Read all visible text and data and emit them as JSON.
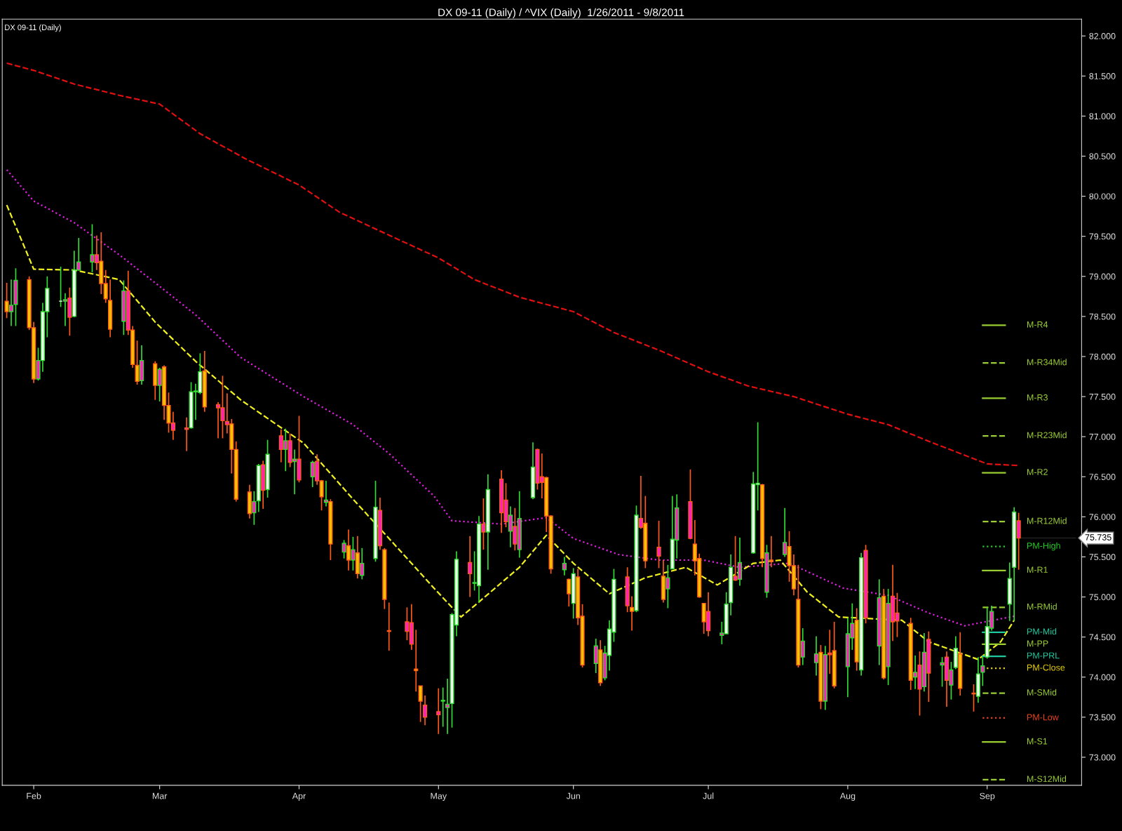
{
  "chart_data": {
    "type": "candlestick",
    "title": "DX 09-11 (Daily) / ^VIX (Daily)  1/26/2011 - 9/8/2011",
    "annotations": [
      "DX 09-11 (Daily)",
      {
        "text": "75.735",
        "x": "2011-09-08",
        "y": 75.735
      }
    ],
    "x": [
      "2011-01-26",
      "2011-01-27",
      "2011-01-28",
      "2011-01-31",
      "2011-02-01",
      "2011-02-02",
      "2011-02-03",
      "2011-02-04",
      "2011-02-07",
      "2011-02-08",
      "2011-02-09",
      "2011-02-10",
      "2011-02-11",
      "2011-02-14",
      "2011-02-15",
      "2011-02-16",
      "2011-02-17",
      "2011-02-18",
      "2011-02-21",
      "2011-02-22",
      "2011-02-23",
      "2011-02-24",
      "2011-02-25",
      "2011-02-28",
      "2011-03-01",
      "2011-03-02",
      "2011-03-03",
      "2011-03-04",
      "2011-03-07",
      "2011-03-08",
      "2011-03-09",
      "2011-03-10",
      "2011-03-11",
      "2011-03-14",
      "2011-03-15",
      "2011-03-16",
      "2011-03-17",
      "2011-03-18",
      "2011-03-21",
      "2011-03-22",
      "2011-03-23",
      "2011-03-24",
      "2011-03-25",
      "2011-03-28",
      "2011-03-29",
      "2011-03-30",
      "2011-03-31",
      "2011-04-01",
      "2011-04-04",
      "2011-04-05",
      "2011-04-06",
      "2011-04-07",
      "2011-04-08",
      "2011-04-11",
      "2011-04-12",
      "2011-04-13",
      "2011-04-14",
      "2011-04-15",
      "2011-04-18",
      "2011-04-19",
      "2011-04-20",
      "2011-04-21",
      "2011-04-25",
      "2011-04-26",
      "2011-04-27",
      "2011-04-28",
      "2011-04-29",
      "2011-05-02",
      "2011-05-03",
      "2011-05-04",
      "2011-05-05",
      "2011-05-06",
      "2011-05-09",
      "2011-05-10",
      "2011-05-11",
      "2011-05-12",
      "2011-05-13",
      "2011-05-16",
      "2011-05-17",
      "2011-05-18",
      "2011-05-19",
      "2011-05-20",
      "2011-05-23",
      "2011-05-24",
      "2011-05-25",
      "2011-05-26",
      "2011-05-27",
      "2011-05-30",
      "2011-05-31",
      "2011-06-01",
      "2011-06-02",
      "2011-06-03",
      "2011-06-06",
      "2011-06-07",
      "2011-06-08",
      "2011-06-09",
      "2011-06-10",
      "2011-06-13",
      "2011-06-14",
      "2011-06-15",
      "2011-06-16",
      "2011-06-17",
      "2011-06-20",
      "2011-06-21",
      "2011-06-22",
      "2011-06-23",
      "2011-06-24",
      "2011-06-27",
      "2011-06-28",
      "2011-06-29",
      "2011-06-30",
      "2011-07-01",
      "2011-07-04",
      "2011-07-05",
      "2011-07-06",
      "2011-07-07",
      "2011-07-08",
      "2011-07-11",
      "2011-07-12",
      "2011-07-13",
      "2011-07-14",
      "2011-07-15",
      "2011-07-18",
      "2011-07-19",
      "2011-07-20",
      "2011-07-21",
      "2011-07-22",
      "2011-07-25",
      "2011-07-26",
      "2011-07-27",
      "2011-07-28",
      "2011-07-29",
      "2011-08-01",
      "2011-08-02",
      "2011-08-03",
      "2011-08-04",
      "2011-08-05",
      "2011-08-08",
      "2011-08-09",
      "2011-08-10",
      "2011-08-11",
      "2011-08-12",
      "2011-08-15",
      "2011-08-16",
      "2011-08-17",
      "2011-08-18",
      "2011-08-19",
      "2011-08-22",
      "2011-08-23",
      "2011-08-24",
      "2011-08-25",
      "2011-08-26",
      "2011-08-29",
      "2011-08-30",
      "2011-08-31",
      "2011-09-01",
      "2011-09-02",
      "2011-09-06",
      "2011-09-07",
      "2011-09-08"
    ],
    "ohlc": [
      [
        78.69,
        78.92,
        78.48,
        78.56
      ],
      [
        78.56,
        78.96,
        78.38,
        78.64
      ],
      [
        78.65,
        79.1,
        78.38,
        78.95
      ],
      [
        78.96,
        79.0,
        78.33,
        78.36
      ],
      [
        78.36,
        78.43,
        77.67,
        77.72
      ],
      [
        77.72,
        78.11,
        77.7,
        77.95
      ],
      [
        77.95,
        78.67,
        77.81,
        78.56
      ],
      [
        78.56,
        79.0,
        78.24,
        78.85
      ],
      [
        78.69,
        79.12,
        78.62,
        78.69
      ],
      [
        78.69,
        78.79,
        78.38,
        78.71
      ],
      [
        78.73,
        78.86,
        78.26,
        78.49
      ],
      [
        78.5,
        79.32,
        78.49,
        79.08
      ],
      [
        79.08,
        79.48,
        79.07,
        79.18
      ],
      [
        79.18,
        79.65,
        79.05,
        79.27
      ],
      [
        79.27,
        79.51,
        79.08,
        79.17
      ],
      [
        79.19,
        79.55,
        78.78,
        78.91
      ],
      [
        78.91,
        79.08,
        78.67,
        78.72
      ],
      [
        78.7,
        78.96,
        78.24,
        78.34
      ],
      [
        78.44,
        78.95,
        78.27,
        78.82
      ],
      [
        78.82,
        79.07,
        78.27,
        78.33
      ],
      [
        78.33,
        78.38,
        77.86,
        77.9
      ],
      [
        77.89,
        78.2,
        77.65,
        77.69
      ],
      [
        77.7,
        78.14,
        77.65,
        77.95
      ],
      [
        77.91,
        77.94,
        77.46,
        77.64
      ],
      [
        77.64,
        77.86,
        77.44,
        77.84
      ],
      [
        77.87,
        77.89,
        77.21,
        77.39
      ],
      [
        77.39,
        77.55,
        77.05,
        77.17
      ],
      [
        77.17,
        77.31,
        76.96,
        77.08
      ],
      [
        77.11,
        77.24,
        76.82,
        77.09
      ],
      [
        77.11,
        77.68,
        77.1,
        77.56
      ],
      [
        77.56,
        77.66,
        77.21,
        77.57
      ],
      [
        77.55,
        78.04,
        77.53,
        77.81
      ],
      [
        77.82,
        78.07,
        77.31,
        77.37
      ],
      [
        77.4,
        77.43,
        76.98,
        77.36
      ],
      [
        77.36,
        77.76,
        76.98,
        77.2
      ],
      [
        77.19,
        77.54,
        77.04,
        77.15
      ],
      [
        77.16,
        77.22,
        76.54,
        76.84
      ],
      [
        76.84,
        76.94,
        76.19,
        76.22
      ],
      [
        76.31,
        76.4,
        75.98,
        76.04
      ],
      [
        76.05,
        76.32,
        75.9,
        76.19
      ],
      [
        76.2,
        76.66,
        76.06,
        76.64
      ],
      [
        76.65,
        76.7,
        76.1,
        76.33
      ],
      [
        76.34,
        76.96,
        76.24,
        76.78
      ],
      [
        77.01,
        77.09,
        76.68,
        76.84
      ],
      [
        76.84,
        77.1,
        76.57,
        76.95
      ],
      [
        76.95,
        77.04,
        76.62,
        76.68
      ],
      [
        76.69,
        76.84,
        76.28,
        76.72
      ],
      [
        76.72,
        77.26,
        76.43,
        76.46
      ],
      [
        76.5,
        76.7,
        76.37,
        76.68
      ],
      [
        76.69,
        76.78,
        76.4,
        76.45
      ],
      [
        76.45,
        76.46,
        76.08,
        76.25
      ],
      [
        76.18,
        76.45,
        76.13,
        76.21
      ],
      [
        76.19,
        76.22,
        75.46,
        75.66
      ],
      [
        75.56,
        75.71,
        75.48,
        75.67
      ],
      [
        75.64,
        75.84,
        75.33,
        75.46
      ],
      [
        75.46,
        75.75,
        75.33,
        75.59
      ],
      [
        75.55,
        75.76,
        75.23,
        75.29
      ],
      [
        75.27,
        75.61,
        75.22,
        75.42
      ],
      [
        75.48,
        76.45,
        75.44,
        76.12
      ],
      [
        76.08,
        76.24,
        75.59,
        75.64
      ],
      [
        75.59,
        75.61,
        74.85,
        74.97
      ],
      [
        74.58,
        74.93,
        74.33,
        74.57
      ],
      [
        74.69,
        74.87,
        74.46,
        74.57
      ],
      [
        74.68,
        74.91,
        74.34,
        74.41
      ],
      [
        74.1,
        74.59,
        73.82,
        74.08
      ],
      [
        73.89,
        73.89,
        73.44,
        73.7
      ],
      [
        73.65,
        73.77,
        73.4,
        73.5
      ],
      [
        73.57,
        73.86,
        73.29,
        73.53
      ],
      [
        73.7,
        73.87,
        73.38,
        73.71
      ],
      [
        73.62,
        73.98,
        73.29,
        73.66
      ],
      [
        73.67,
        74.8,
        73.37,
        74.78
      ],
      [
        74.65,
        75.57,
        74.51,
        75.47
      ],
      [
        75.43,
        75.76,
        75.0,
        75.29
      ],
      [
        75.17,
        75.57,
        75.08,
        75.18
      ],
      [
        75.14,
        76.01,
        74.93,
        75.91
      ],
      [
        75.91,
        76.23,
        75.59,
        75.81
      ],
      [
        75.81,
        76.53,
        75.34,
        76.34
      ],
      [
        76.47,
        76.58,
        75.8,
        76.05
      ],
      [
        76.21,
        76.42,
        75.87,
        75.94
      ],
      [
        75.82,
        76.13,
        75.62,
        76.02
      ],
      [
        75.88,
        76.11,
        75.58,
        75.66
      ],
      [
        75.59,
        76.32,
        75.49,
        75.98
      ],
      [
        76.24,
        76.93,
        76.22,
        76.62
      ],
      [
        76.84,
        76.85,
        76.34,
        76.42
      ],
      [
        76.5,
        76.79,
        76.23,
        76.43
      ],
      [
        76.49,
        76.5,
        75.81,
        76.01
      ],
      [
        76.01,
        76.02,
        75.29,
        75.35
      ],
      [
        75.34,
        75.5,
        75.27,
        75.42
      ],
      [
        75.22,
        75.23,
        74.88,
        75.04
      ],
      [
        74.92,
        75.36,
        74.73,
        75.29
      ],
      [
        75.25,
        75.35,
        74.65,
        74.74
      ],
      [
        74.76,
        74.91,
        74.12,
        74.15
      ],
      [
        74.17,
        74.48,
        74.05,
        74.39
      ],
      [
        74.34,
        74.46,
        73.89,
        73.93
      ],
      [
        73.99,
        74.39,
        73.96,
        74.3
      ],
      [
        74.27,
        74.71,
        74.08,
        74.6
      ],
      [
        74.56,
        75.35,
        74.44,
        75.22
      ],
      [
        75.25,
        75.37,
        74.81,
        74.89
      ],
      [
        74.87,
        75.01,
        74.58,
        74.82
      ],
      [
        74.83,
        76.14,
        74.81,
        76.02
      ],
      [
        75.98,
        76.51,
        75.85,
        75.87
      ],
      [
        75.92,
        76.26,
        75.36,
        75.45
      ],
      [
        75.62,
        75.95,
        75.36,
        75.51
      ],
      [
        75.26,
        75.46,
        74.93,
        74.97
      ],
      [
        75.1,
        75.4,
        74.86,
        75.24
      ],
      [
        75.35,
        76.26,
        75.35,
        75.72
      ],
      [
        75.71,
        76.28,
        75.48,
        76.11
      ],
      [
        76.19,
        76.59,
        75.72,
        75.73
      ],
      [
        75.66,
        75.96,
        75.27,
        75.45
      ],
      [
        75.48,
        75.54,
        74.99,
        75.0
      ],
      [
        74.92,
        74.92,
        74.54,
        74.69
      ],
      [
        74.82,
        75.06,
        74.51,
        74.58
      ],
      [
        74.52,
        74.69,
        74.41,
        74.55
      ],
      [
        74.54,
        75.06,
        74.54,
        74.91
      ],
      [
        74.93,
        75.53,
        74.77,
        75.37
      ],
      [
        75.26,
        75.76,
        75.2,
        75.21
      ],
      [
        75.22,
        75.74,
        75.14,
        75.43
      ],
      [
        75.55,
        76.56,
        75.54,
        76.41
      ],
      [
        76.4,
        77.18,
        76.08,
        76.42
      ],
      [
        76.4,
        76.41,
        75.37,
        75.48
      ],
      [
        75.06,
        75.65,
        74.99,
        75.55
      ],
      [
        75.46,
        75.76,
        75.37,
        75.44
      ],
      [
        75.53,
        76.11,
        75.5,
        75.68
      ],
      [
        75.63,
        75.82,
        75.19,
        75.39
      ],
      [
        75.39,
        75.53,
        75.02,
        75.1
      ],
      [
        74.97,
        75.4,
        74.12,
        74.15
      ],
      [
        74.25,
        74.61,
        74.15,
        74.45
      ],
      [
        74.18,
        74.51,
        74.02,
        74.29
      ],
      [
        74.31,
        74.4,
        73.6,
        73.7
      ],
      [
        73.7,
        74.39,
        73.59,
        74.28
      ],
      [
        74.3,
        74.59,
        74.04,
        74.28
      ],
      [
        74.33,
        74.69,
        73.86,
        73.89
      ],
      [
        74.13,
        74.74,
        73.75,
        74.54
      ],
      [
        74.49,
        74.92,
        74.34,
        74.67
      ],
      [
        74.71,
        74.86,
        74.08,
        74.19
      ],
      [
        74.09,
        75.55,
        74.02,
        75.49
      ],
      [
        75.58,
        75.65,
        74.67,
        74.74
      ],
      [
        74.39,
        75.22,
        74.15,
        74.99
      ],
      [
        75.01,
        75.1,
        73.97,
        73.99
      ],
      [
        74.13,
        75.1,
        73.9,
        74.92
      ],
      [
        75.01,
        75.4,
        74.45,
        74.69
      ],
      [
        74.8,
        75.05,
        74.5,
        74.7
      ],
      [
        74.67,
        74.74,
        73.84,
        73.96
      ],
      [
        74.0,
        74.27,
        73.85,
        74.06
      ],
      [
        74.15,
        74.32,
        73.52,
        73.85
      ],
      [
        73.88,
        74.55,
        73.82,
        74.31
      ],
      [
        74.47,
        74.57,
        73.69,
        74.05
      ],
      [
        74.15,
        74.25,
        73.88,
        74.18
      ],
      [
        74.25,
        74.32,
        73.63,
        73.96
      ],
      [
        73.9,
        74.19,
        73.72,
        74.09
      ],
      [
        74.12,
        74.51,
        74.1,
        74.36
      ],
      [
        74.29,
        74.56,
        73.77,
        73.86
      ],
      [
        73.8,
        73.91,
        73.57,
        73.79
      ],
      [
        73.76,
        74.25,
        73.68,
        74.04
      ],
      [
        74.06,
        74.25,
        73.89,
        74.14
      ],
      [
        74.25,
        74.87,
        74.23,
        74.63
      ],
      [
        74.61,
        74.89,
        74.58,
        74.82
      ],
      [
        74.91,
        75.43,
        74.7,
        75.23
      ],
      [
        75.37,
        76.12,
        74.7,
        76.06
      ],
      [
        75.95,
        76.05,
        75.34,
        75.735
      ]
    ],
    "colors": [
      "#ffc000",
      "#ff20c0",
      "#ff20c0",
      "#ffc000",
      "#ffc000",
      "#ff20c0",
      "#f0fff0",
      "#f0fff0",
      "#f0fff0",
      "#ff20c0",
      "#ff20c0",
      "#f0fff0",
      "#ff20c0",
      "#ff20c0",
      "#ff20c0",
      "#ffc000",
      "#ffc000",
      "#ffc000",
      "#ff20c0",
      "#ff20c0",
      "#ffc000",
      "#ffc000",
      "#ff20c0",
      "#ffc000",
      "#ff20c0",
      "#ffc000",
      "#ffc000",
      "#ff20c0",
      "#ff20c0",
      "#f0fff0",
      "#ff20c0",
      "#f0fff0",
      "#ffc000",
      "#ff20c0",
      "#ff20c0",
      "#ff20c0",
      "#ffc000",
      "#ffc000",
      "#ffc000",
      "#ff20c0",
      "#f0fff0",
      "#ff20c0",
      "#f0fff0",
      "#ff20c0",
      "#ff20c0",
      "#ff20c0",
      "#ff20c0",
      "#ff20c0",
      "#ff20c0",
      "#ff20c0",
      "#ffc000",
      "#ff20c0",
      "#ffc000",
      "#ff20c0",
      "#ffc000",
      "#ff20c0",
      "#ffc000",
      "#ff20c0",
      "#f0fff0",
      "#ff20c0",
      "#ffc000",
      "#ffc000",
      "#ff20c0",
      "#ff20c0",
      "#ffc000",
      "#ffc000",
      "#ff20c0",
      "#ff20c0",
      "#f0fff0",
      "#ff20c0",
      "#f0fff0",
      "#f0fff0",
      "#ff20c0",
      "#f0fff0",
      "#f0fff0",
      "#ff20c0",
      "#f0fff0",
      "#ff20c0",
      "#ff20c0",
      "#ff20c0",
      "#ff20c0",
      "#ff20c0",
      "#f0fff0",
      "#ff20c0",
      "#ff20c0",
      "#ffc000",
      "#ffc000",
      "#ff20c0",
      "#ffc000",
      "#f0fff0",
      "#ffc000",
      "#ffc000",
      "#ff20c0",
      "#ffc000",
      "#ff20c0",
      "#f0fff0",
      "#f0fff0",
      "#ff20c0",
      "#ffc000",
      "#f0fff0",
      "#ff20c0",
      "#ffc000",
      "#ff20c0",
      "#ffc000",
      "#ff20c0",
      "#f0fff0",
      "#ff20c0",
      "#ff20c0",
      "#ffc000",
      "#ffc000",
      "#ffc000",
      "#ff20c0",
      "#ff20c0",
      "#f0fff0",
      "#f0fff0",
      "#ff20c0",
      "#ff20c0",
      "#f0fff0",
      "#f0fff0",
      "#ffc000",
      "#ff20c0",
      "#ffc000",
      "#ff20c0",
      "#ffc000",
      "#ffc000",
      "#ffc000",
      "#ff20c0",
      "#ff20c0",
      "#ffc000",
      "#ff20c0",
      "#ff20c0",
      "#ffc000",
      "#ff20c0",
      "#ff20c0",
      "#ffc000",
      "#f0fff0",
      "#ff20c0",
      "#ff20c0",
      "#ffc000",
      "#ff20c0",
      "#ff20c0",
      "#ff20c0",
      "#ffc000",
      "#ff20c0",
      "#ff20c0",
      "#ff20c0",
      "#ff20c0",
      "#ff20c0",
      "#ff20c0",
      "#ff20c0",
      "#f0fff0",
      "#ffc000",
      "#ffc000",
      "#f0fff0",
      "#ff20c0",
      "#f0fff0",
      "#ff20c0",
      "#f0fff0",
      "#f0fff0",
      "#ff20c0"
    ],
    "series": [
      {
        "type": "line",
        "color": "#e01010",
        "line_style": "dashed",
        "x": [
          "2011-01-26",
          "2011-02-01",
          "2011-02-10",
          "2011-02-20",
          "2011-03-01",
          "2011-03-10",
          "2011-03-20",
          "2011-04-01",
          "2011-04-10",
          "2011-04-20",
          "2011-05-02",
          "2011-05-10",
          "2011-05-20",
          "2011-06-01",
          "2011-06-10",
          "2011-06-20",
          "2011-07-01",
          "2011-07-10",
          "2011-07-20",
          "2011-08-01",
          "2011-08-10",
          "2011-08-20",
          "2011-09-01",
          "2011-09-08"
        ],
        "values": [
          81.66,
          81.57,
          81.4,
          81.26,
          81.15,
          80.78,
          80.47,
          80.14,
          79.8,
          79.54,
          79.23,
          78.96,
          78.74,
          78.56,
          78.3,
          78.08,
          77.81,
          77.63,
          77.5,
          77.28,
          77.15,
          76.92,
          76.66,
          76.64
        ]
      },
      {
        "type": "line",
        "color": "#e020e0",
        "line_style": "dotted",
        "x": [
          "2011-01-26",
          "2011-02-01",
          "2011-02-10",
          "2011-02-20",
          "2011-02-28",
          "2011-03-09",
          "2011-03-19",
          "2011-04-02",
          "2011-04-13",
          "2011-04-21",
          "2011-05-01",
          "2011-05-05",
          "2011-05-16",
          "2011-05-26",
          "2011-06-01",
          "2011-06-11",
          "2011-06-20",
          "2011-06-30",
          "2011-07-08",
          "2011-07-19",
          "2011-07-31",
          "2011-08-10",
          "2011-08-19",
          "2011-08-27",
          "2011-09-07"
        ],
        "values": [
          80.33,
          79.94,
          79.67,
          79.27,
          78.92,
          78.52,
          77.99,
          77.5,
          77.15,
          76.79,
          76.26,
          75.95,
          75.91,
          75.99,
          75.73,
          75.53,
          75.46,
          75.46,
          75.37,
          75.42,
          75.11,
          75.02,
          74.8,
          74.64,
          74.76
        ]
      },
      {
        "type": "line",
        "color": "#f0f020",
        "line_style": "dashed",
        "x": [
          "2011-01-26",
          "2011-02-01",
          "2011-02-10",
          "2011-02-20",
          "2011-02-28",
          "2011-03-09",
          "2011-03-19",
          "2011-04-02",
          "2011-04-13",
          "2011-04-21",
          "2011-05-01",
          "2011-05-07",
          "2011-05-10",
          "2011-05-20",
          "2011-05-26",
          "2011-06-01",
          "2011-06-09",
          "2011-06-17",
          "2011-06-26",
          "2011-07-03",
          "2011-07-11",
          "2011-07-17",
          "2011-07-23",
          "2011-07-30",
          "2011-08-13",
          "2011-08-19",
          "2011-08-30",
          "2011-09-04",
          "2011-09-07"
        ],
        "values": [
          79.89,
          79.09,
          79.08,
          78.96,
          78.43,
          77.94,
          77.46,
          76.92,
          76.22,
          75.73,
          75.11,
          74.75,
          74.89,
          75.37,
          75.77,
          75.42,
          75.04,
          75.24,
          75.37,
          75.15,
          75.42,
          75.46,
          75.06,
          74.75,
          74.71,
          74.44,
          74.22,
          74.44,
          74.71
        ]
      },
      {
        "type": "line",
        "name": "M-R4",
        "color": "#9acd32",
        "line_style": "solid",
        "x": [
          "2011-08-31",
          "2011-09-05"
        ],
        "values": [
          78.39,
          78.39
        ]
      },
      {
        "type": "line",
        "name": "M-R34Mid",
        "color": "#9acd32",
        "line_style": "dashed",
        "x": [
          "2011-08-31",
          "2011-09-05"
        ],
        "values": [
          77.92,
          77.92
        ]
      },
      {
        "type": "line",
        "name": "M-R3",
        "color": "#9acd32",
        "line_style": "solid",
        "x": [
          "2011-08-31",
          "2011-09-05"
        ],
        "values": [
          77.48,
          77.48
        ]
      },
      {
        "type": "line",
        "name": "M-R23Mid",
        "color": "#9acd32",
        "line_style": "dashed",
        "x": [
          "2011-08-31",
          "2011-09-05"
        ],
        "values": [
          77.01,
          77.01
        ]
      },
      {
        "type": "line",
        "name": "M-R2",
        "color": "#9acd32",
        "line_style": "solid",
        "x": [
          "2011-08-31",
          "2011-09-05"
        ],
        "values": [
          76.55,
          76.55
        ]
      },
      {
        "type": "line",
        "name": "M-R12Mid",
        "color": "#9acd32",
        "line_style": "dashed",
        "x": [
          "2011-08-31",
          "2011-09-05"
        ],
        "values": [
          75.94,
          75.94
        ]
      },
      {
        "type": "line",
        "name": "PM-High",
        "color": "#22cc22",
        "line_style": "dotted",
        "x": [
          "2011-08-31",
          "2011-09-05"
        ],
        "values": [
          75.63,
          75.63
        ]
      },
      {
        "type": "line",
        "name": "M-R1",
        "color": "#9acd32",
        "line_style": "solid",
        "x": [
          "2011-08-31",
          "2011-09-05"
        ],
        "values": [
          75.33,
          75.33
        ]
      },
      {
        "type": "line",
        "name": "M-RMid",
        "color": "#9acd32",
        "line_style": "dashed",
        "x": [
          "2011-08-31",
          "2011-09-05"
        ],
        "values": [
          74.87,
          74.87
        ]
      },
      {
        "type": "line",
        "name": "PM-Mid",
        "color": "#20c8a0",
        "line_style": "solid",
        "x": [
          "2011-08-31",
          "2011-09-05"
        ],
        "values": [
          74.56,
          74.56
        ]
      },
      {
        "type": "line",
        "name": "M-PP",
        "color": "#9acd32",
        "line_style": "solid",
        "x": [
          "2011-08-31",
          "2011-09-05"
        ],
        "values": [
          74.41,
          74.41
        ]
      },
      {
        "type": "line",
        "name": "PM-PRL",
        "color": "#20c8a0",
        "line_style": "solid",
        "x": [
          "2011-08-31",
          "2011-09-05"
        ],
        "values": [
          74.26,
          74.26
        ]
      },
      {
        "type": "line",
        "name": "PM-Close",
        "color": "#e8d000",
        "line_style": "dotted",
        "x": [
          "2011-08-31",
          "2011-09-05"
        ],
        "values": [
          74.11,
          74.11
        ]
      },
      {
        "type": "line",
        "name": "M-SMid",
        "color": "#9acd32",
        "line_style": "dashed",
        "x": [
          "2011-08-31",
          "2011-09-05"
        ],
        "values": [
          73.8,
          73.8
        ]
      },
      {
        "type": "line",
        "name": "PM-Low",
        "color": "#e84020",
        "line_style": "dotted",
        "x": [
          "2011-08-31",
          "2011-09-05"
        ],
        "values": [
          73.49,
          73.49
        ]
      },
      {
        "type": "line",
        "name": "M-S1",
        "color": "#9acd32",
        "line_style": "solid",
        "x": [
          "2011-08-31",
          "2011-09-05"
        ],
        "values": [
          73.19,
          73.19
        ]
      },
      {
        "type": "line",
        "name": "M-S12Mid",
        "color": "#9acd32",
        "line_style": "dashed",
        "x": [
          "2011-08-31",
          "2011-09-05"
        ],
        "values": [
          72.72,
          72.72
        ]
      }
    ],
    "xlim": [
      "2011-01-25",
      "2011-09-22"
    ],
    "xticks": [
      {
        "value": "2011-02-01",
        "label": "Feb"
      },
      {
        "value": "2011-03-01",
        "label": "Mar"
      },
      {
        "value": "2011-04-01",
        "label": "Apr"
      },
      {
        "value": "2011-05-02",
        "label": "May"
      },
      {
        "value": "2011-06-01",
        "label": "Jun"
      },
      {
        "value": "2011-07-01",
        "label": "Jul"
      },
      {
        "value": "2011-08-01",
        "label": "Aug"
      },
      {
        "value": "2011-09-01",
        "label": "Sep"
      }
    ],
    "ylim": [
      72.65,
      82.21
    ],
    "yticks": [
      {
        "value": 73,
        "label": "73.000"
      },
      {
        "value": 73.5,
        "label": "73.500"
      },
      {
        "value": 74,
        "label": "74.000"
      },
      {
        "value": 74.5,
        "label": "74.500"
      },
      {
        "value": 75,
        "label": "75.000"
      },
      {
        "value": 75.5,
        "label": "75.500"
      },
      {
        "value": 76,
        "label": "76.000"
      },
      {
        "value": 76.5,
        "label": "76.500"
      },
      {
        "value": 77,
        "label": "77.000"
      },
      {
        "value": 77.5,
        "label": "77.500"
      },
      {
        "value": 78,
        "label": "78.000"
      },
      {
        "value": 78.5,
        "label": "78.500"
      },
      {
        "value": 79,
        "label": "79.000"
      },
      {
        "value": 79.5,
        "label": "79.500"
      },
      {
        "value": 80,
        "label": "80.000"
      },
      {
        "value": 80.5,
        "label": "80.500"
      },
      {
        "value": 81,
        "label": "81.000"
      },
      {
        "value": 81.5,
        "label": "81.500"
      },
      {
        "value": 82,
        "label": "82.000"
      }
    ],
    "grid": false,
    "legend": false
  }
}
